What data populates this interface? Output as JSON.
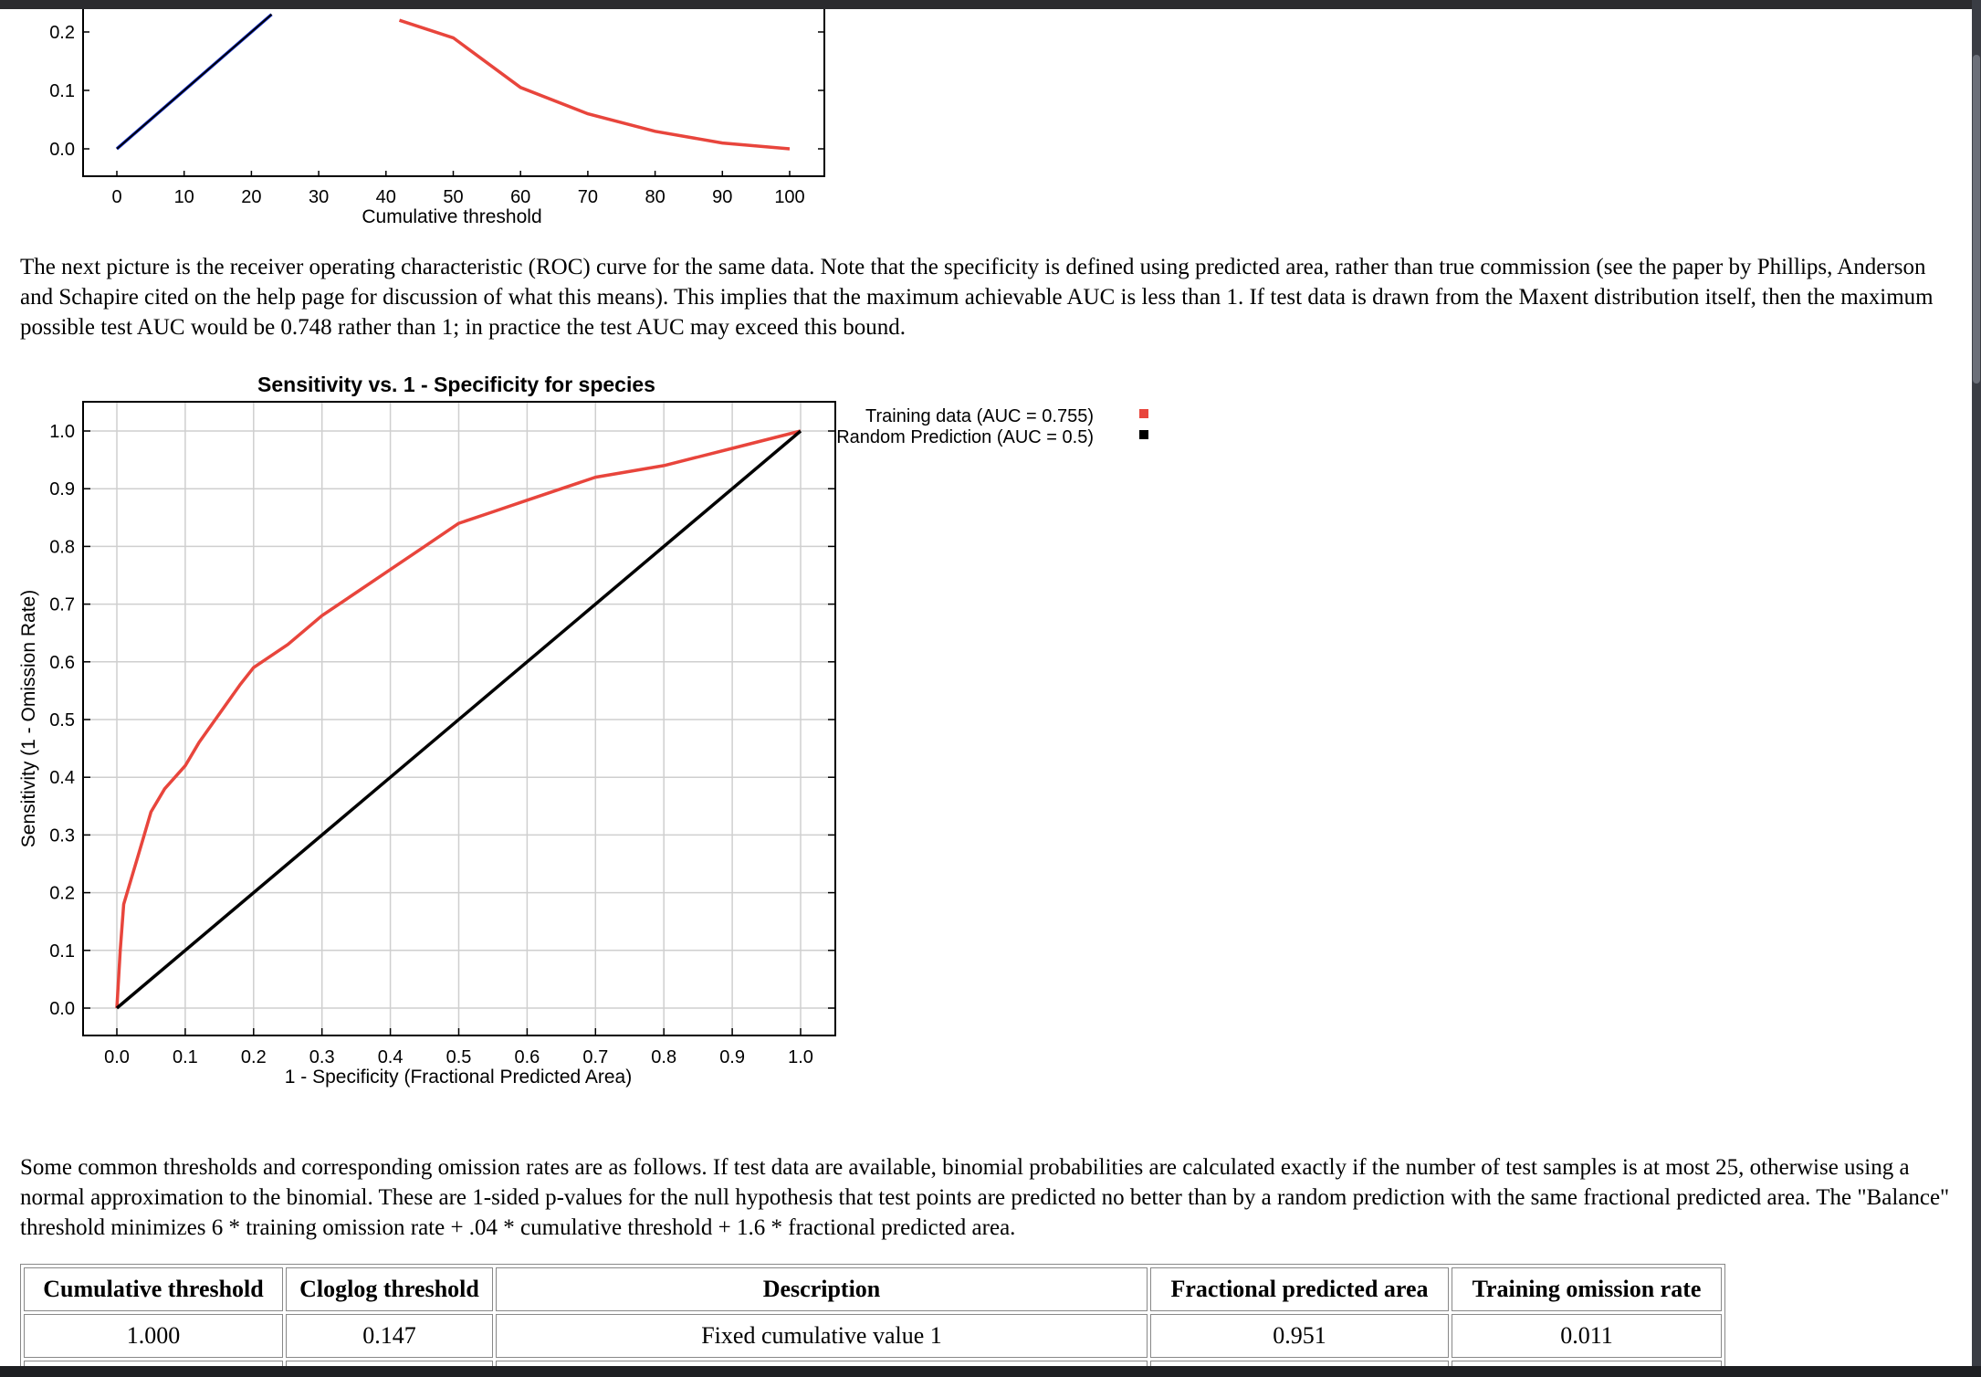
{
  "top_chart": {
    "chart_data": {
      "type": "line",
      "xlabel": "Cumulative threshold",
      "x_ticks": [
        "0",
        "10",
        "20",
        "30",
        "40",
        "50",
        "60",
        "70",
        "80",
        "90",
        "100"
      ],
      "y_ticks": [
        "0.0",
        "0.1",
        "0.2"
      ],
      "xlim": [
        0,
        100
      ],
      "ylim_visible": [
        0.0,
        0.2
      ],
      "series": [
        {
          "color": "#e8453c",
          "points": [
            [
              42,
              0.22
            ],
            [
              50,
              0.19
            ],
            [
              60,
              0.105
            ],
            [
              70,
              0.06
            ],
            [
              80,
              0.03
            ],
            [
              90,
              0.01
            ],
            [
              100,
              0.0
            ]
          ]
        },
        {
          "color": "#1a35d9",
          "points": [
            [
              0,
              0.0
            ],
            [
              10,
              0.1
            ],
            [
              20,
              0.2
            ],
            [
              23,
              0.23
            ]
          ]
        },
        {
          "color": "#000000",
          "points": [
            [
              0,
              0.0
            ],
            [
              10,
              0.1
            ],
            [
              20,
              0.2
            ],
            [
              23,
              0.23
            ]
          ]
        }
      ]
    }
  },
  "paragraph1": "The next picture is the receiver operating characteristic (ROC) curve for the same data. Note that the specificity is defined using predicted area, rather than true commission (see the paper by Phillips, Anderson and Schapire cited on the help page for discussion of what this means). This implies that the maximum achievable AUC is less than 1. If test data is drawn from the Maxent distribution itself, then the maximum possible test AUC would be 0.748 rather than 1; in practice the test AUC may exceed this bound.",
  "roc_chart": {
    "chart_data": {
      "type": "line",
      "title": "Sensitivity vs. 1 - Specificity for species",
      "xlabel": "1 - Specificity (Fractional Predicted Area)",
      "ylabel": "Sensitivity (1 - Omission Rate)",
      "x_ticks": [
        "0.0",
        "0.1",
        "0.2",
        "0.3",
        "0.4",
        "0.5",
        "0.6",
        "0.7",
        "0.8",
        "0.9",
        "1.0"
      ],
      "y_ticks": [
        "0.0",
        "0.1",
        "0.2",
        "0.3",
        "0.4",
        "0.5",
        "0.6",
        "0.7",
        "0.8",
        "0.9",
        "1.0"
      ],
      "xlim": [
        0,
        1
      ],
      "ylim": [
        0,
        1
      ],
      "grid": true,
      "legend_position": "top-right-outside",
      "series": [
        {
          "name": "Training data (AUC = 0.755)",
          "color": "#e8453c",
          "points": [
            [
              0,
              0
            ],
            [
              0.005,
              0.1
            ],
            [
              0.01,
              0.18
            ],
            [
              0.02,
              0.22
            ],
            [
              0.03,
              0.26
            ],
            [
              0.04,
              0.3
            ],
            [
              0.05,
              0.34
            ],
            [
              0.07,
              0.38
            ],
            [
              0.1,
              0.42
            ],
            [
              0.12,
              0.46
            ],
            [
              0.15,
              0.51
            ],
            [
              0.18,
              0.56
            ],
            [
              0.2,
              0.59
            ],
            [
              0.25,
              0.63
            ],
            [
              0.3,
              0.68
            ],
            [
              0.35,
              0.72
            ],
            [
              0.4,
              0.76
            ],
            [
              0.45,
              0.8
            ],
            [
              0.5,
              0.84
            ],
            [
              0.55,
              0.86
            ],
            [
              0.6,
              0.88
            ],
            [
              0.65,
              0.9
            ],
            [
              0.7,
              0.92
            ],
            [
              0.8,
              0.94
            ],
            [
              0.9,
              0.97
            ],
            [
              1.0,
              1.0
            ]
          ]
        },
        {
          "name": "Random Prediction (AUC = 0.5)",
          "color": "#000000",
          "points": [
            [
              0,
              0
            ],
            [
              1,
              1
            ]
          ]
        }
      ]
    }
  },
  "paragraph2": "Some common thresholds and corresponding omission rates are as follows. If test data are available, binomial probabilities are calculated exactly if the number of test samples is at most 25, otherwise using a normal approximation to the binomial. These are 1-sided p-values for the null hypothesis that test points are predicted no better than by a random prediction with the same fractional predicted area. The \"Balance\" threshold minimizes 6 * training omission rate + .04 * cumulative threshold + 1.6 * fractional predicted area.",
  "table": {
    "headers": [
      "Cumulative threshold",
      "Cloglog threshold",
      "Description",
      "Fractional predicted area",
      "Training omission rate"
    ],
    "rows": [
      [
        "1.000",
        "0.147",
        "Fixed cumulative value 1",
        "0.951",
        "0.011"
      ]
    ]
  }
}
